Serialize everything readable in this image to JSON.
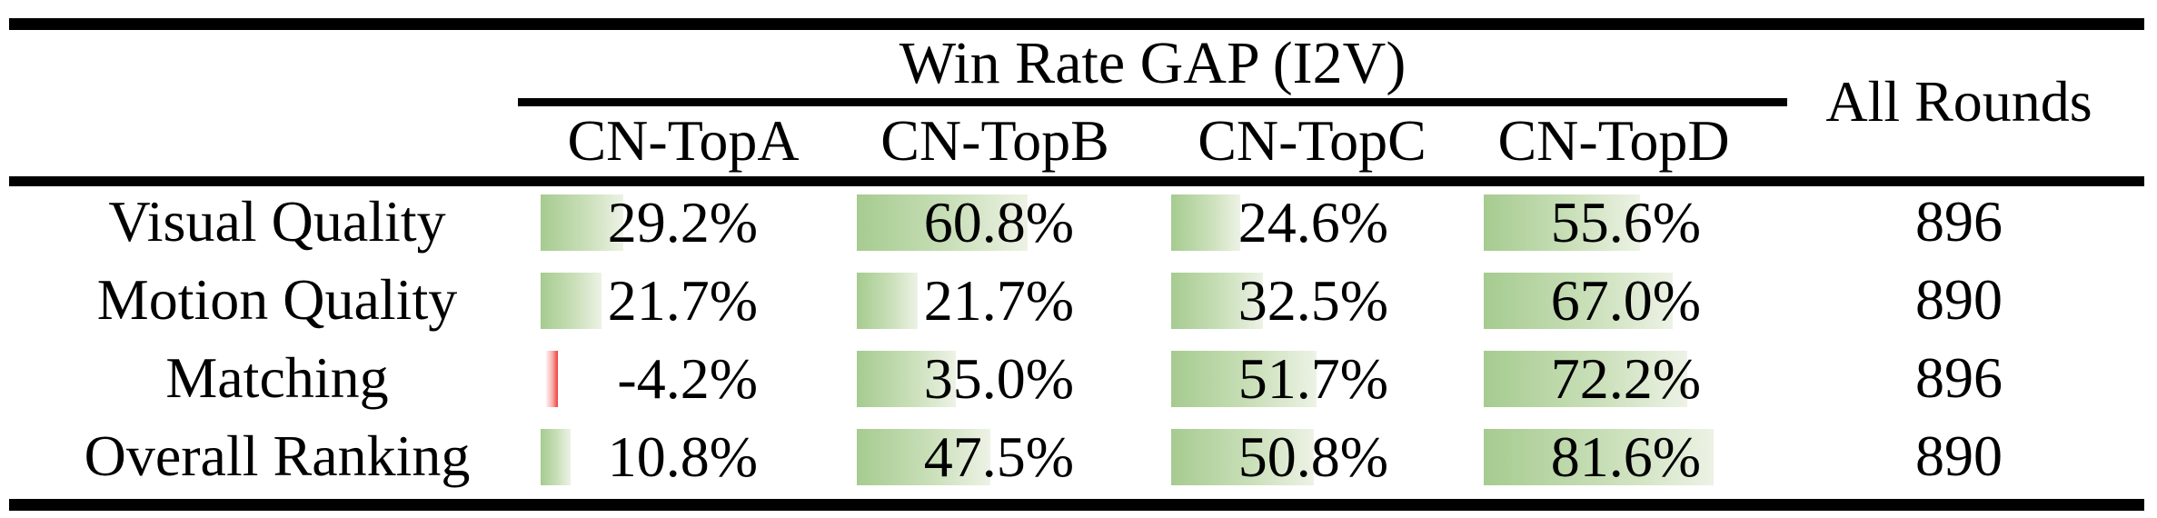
{
  "table": {
    "group_header": "Win Rate GAP (I2V)",
    "all_rounds_header": "All Rounds",
    "columns": [
      {
        "label": "CN-TopA"
      },
      {
        "label": "CN-TopB"
      },
      {
        "label": "CN-TopC"
      },
      {
        "label": "CN-TopD"
      }
    ],
    "rows": [
      {
        "label": "Visual Quality",
        "cells": [
          {
            "value": "29.2%",
            "percent": 29.2
          },
          {
            "value": "60.8%",
            "percent": 60.8
          },
          {
            "value": "24.6%",
            "percent": 24.6
          },
          {
            "value": "55.6%",
            "percent": 55.6
          }
        ],
        "all_rounds": "896"
      },
      {
        "label": "Motion Quality",
        "cells": [
          {
            "value": "21.7%",
            "percent": 21.7
          },
          {
            "value": "21.7%",
            "percent": 21.7
          },
          {
            "value": "32.5%",
            "percent": 32.5
          },
          {
            "value": "67.0%",
            "percent": 67.0
          }
        ],
        "all_rounds": "890"
      },
      {
        "label": "Matching",
        "cells": [
          {
            "value": "-4.2%",
            "percent": -4.2
          },
          {
            "value": "35.0%",
            "percent": 35.0
          },
          {
            "value": "51.7%",
            "percent": 51.7
          },
          {
            "value": "72.2%",
            "percent": 72.2
          }
        ],
        "all_rounds": "896"
      },
      {
        "label": "Overall Ranking",
        "cells": [
          {
            "value": "10.8%",
            "percent": 10.8
          },
          {
            "value": "47.5%",
            "percent": 47.5
          },
          {
            "value": "50.8%",
            "percent": 50.8
          },
          {
            "value": "81.6%",
            "percent": 81.6
          }
        ],
        "all_rounds": "890"
      }
    ]
  },
  "colors": {
    "positive_bar_start": "#a6cb90",
    "positive_bar_end": "#edf2e5",
    "negative_bar": "#ee3d3d",
    "text": "#000000",
    "rule": "#000000",
    "background": "#ffffff"
  },
  "chart_data": {
    "type": "table",
    "title": "Win Rate GAP (I2V)",
    "row_headers": [
      "Visual Quality",
      "Motion Quality",
      "Matching",
      "Overall Ranking"
    ],
    "columns": [
      "CN-TopA",
      "CN-TopB",
      "CN-TopC",
      "CN-TopD",
      "All Rounds"
    ],
    "series": [
      {
        "name": "CN-TopA",
        "values": [
          29.2,
          21.7,
          -4.2,
          10.8
        ]
      },
      {
        "name": "CN-TopB",
        "values": [
          60.8,
          21.7,
          35.0,
          47.5
        ]
      },
      {
        "name": "CN-TopC",
        "values": [
          24.6,
          32.5,
          51.7,
          50.8
        ]
      },
      {
        "name": "CN-TopD",
        "values": [
          55.6,
          67.0,
          72.2,
          81.6
        ]
      },
      {
        "name": "All Rounds",
        "values": [
          896,
          890,
          896,
          890
        ]
      }
    ],
    "notes": "Cells of the four CN-Top columns contain in-cell green data bars proportional to the win-rate gap percentage; the single negative value (-4.2%) is shown with a thin red bar. All Rounds column is a plain count.",
    "legend_position": "none",
    "grid": false
  }
}
